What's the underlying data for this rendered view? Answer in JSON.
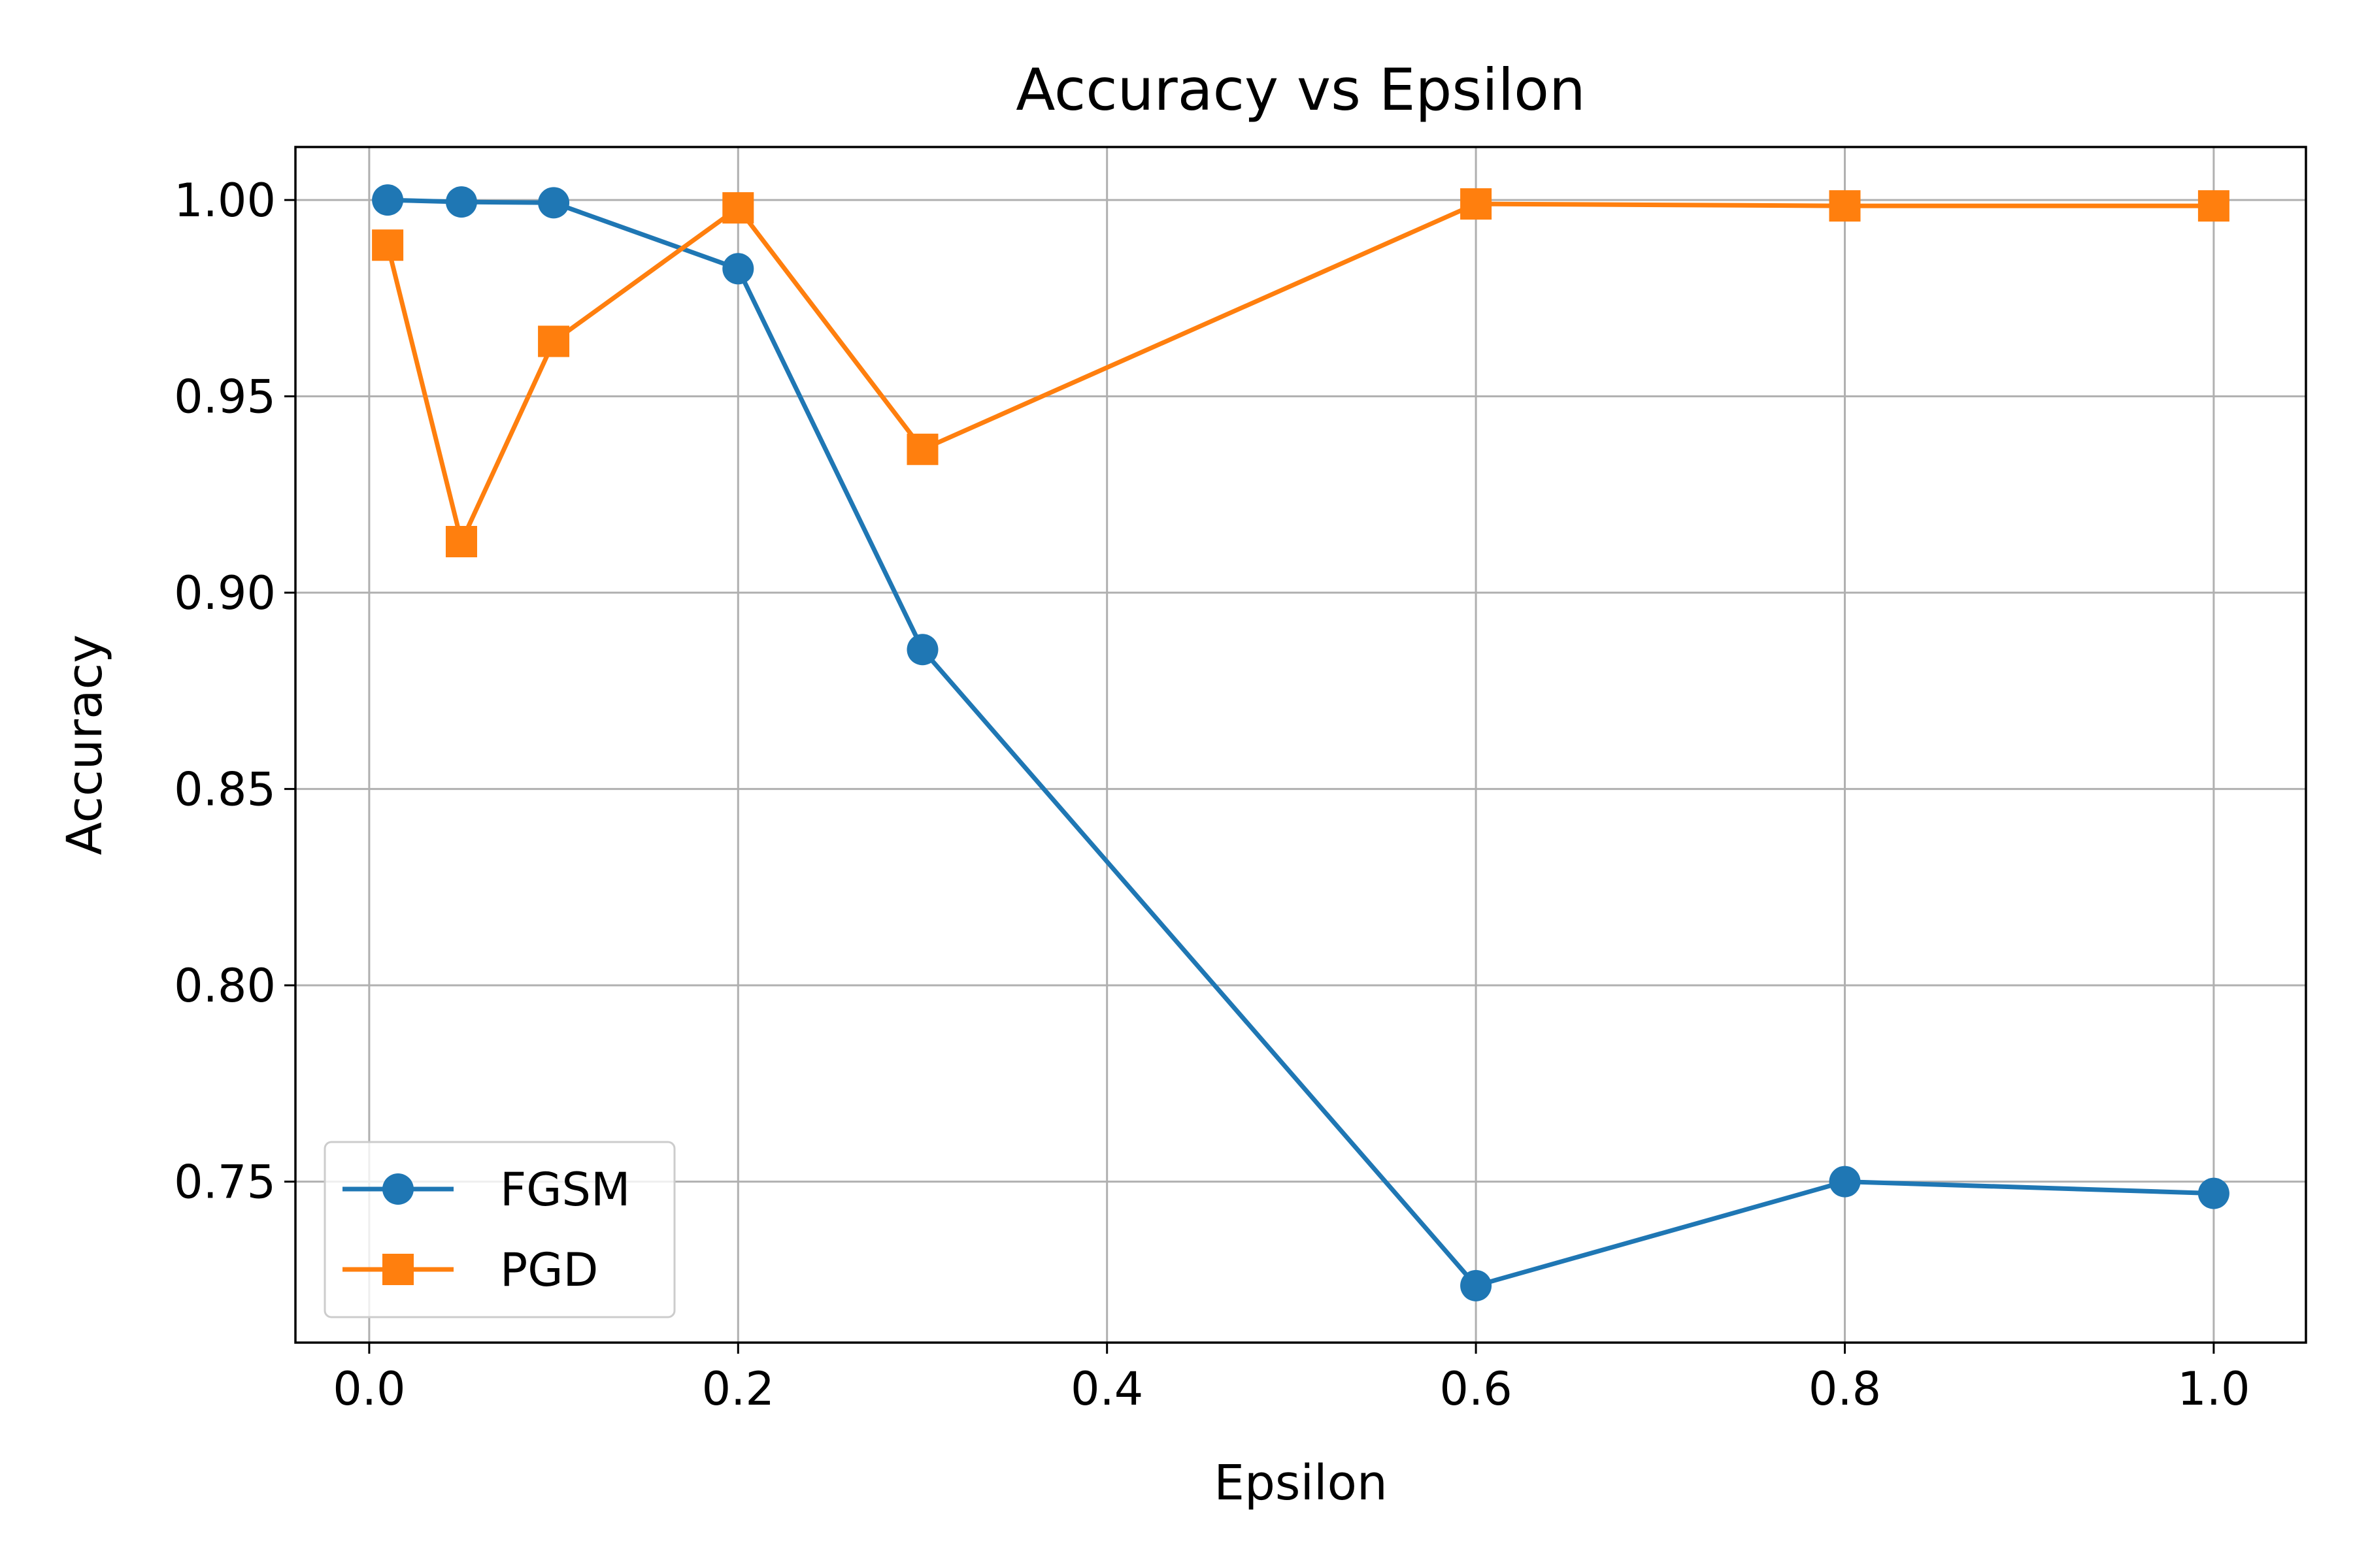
{
  "chart_data": {
    "type": "line",
    "title": "Accuracy vs Epsilon",
    "xlabel": "Epsilon",
    "ylabel": "Accuracy",
    "xlim": [
      -0.04,
      1.05
    ],
    "ylim": [
      0.709,
      1.0135
    ],
    "xticks": [
      0.0,
      0.2,
      0.4,
      0.6,
      0.8,
      1.0
    ],
    "xtick_labels": [
      "0.0",
      "0.2",
      "0.4",
      "0.6",
      "0.8",
      "1.0"
    ],
    "yticks": [
      0.75,
      0.8,
      0.85,
      0.9,
      0.95,
      1.0
    ],
    "ytick_labels": [
      "0.75",
      "0.80",
      "0.85",
      "0.90",
      "0.95",
      "1.00"
    ],
    "grid": true,
    "legend_position": "lower-left",
    "x": [
      0.01,
      0.05,
      0.1,
      0.2,
      0.3,
      0.6,
      0.8,
      1.0
    ],
    "series": [
      {
        "name": "FGSM",
        "marker": "circle",
        "color": "#1f77b4",
        "values": [
          1.0,
          0.9995,
          0.9993,
          0.9825,
          0.8855,
          0.7235,
          0.75,
          0.747
        ]
      },
      {
        "name": "PGD",
        "marker": "square",
        "color": "#ff7f0e",
        "values": [
          0.9885,
          0.913,
          0.964,
          0.998,
          0.9365,
          0.999,
          0.9985,
          0.9985
        ]
      }
    ]
  }
}
